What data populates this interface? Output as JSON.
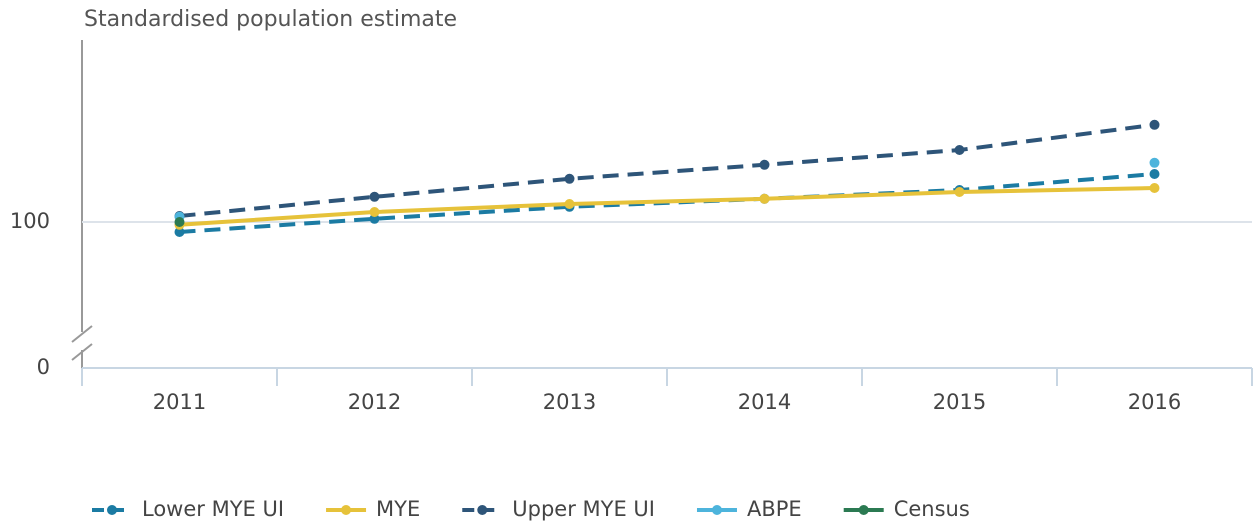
{
  "chart_data": {
    "type": "line",
    "y_label": "Standardised population estimate",
    "categories": [
      "2011",
      "2012",
      "2013",
      "2014",
      "2015",
      "2016"
    ],
    "series": [
      {
        "name": "Lower MYE UI",
        "color": "#1b7ba3",
        "dashed": true,
        "values": [
          99.75,
          100.08,
          100.38,
          100.58,
          100.8,
          101.2
        ]
      },
      {
        "name": "MYE",
        "color": "#e6c23a",
        "dashed": false,
        "values": [
          99.93,
          100.25,
          100.45,
          100.58,
          100.75,
          100.85
        ]
      },
      {
        "name": "Upper MYE UI",
        "color": "#2e5579",
        "dashed": true,
        "values": [
          100.15,
          100.63,
          101.08,
          101.43,
          101.8,
          102.43
        ]
      },
      {
        "name": "ABPE",
        "color": "#4db4dc",
        "dashed": false,
        "values": [
          100.13,
          null,
          null,
          null,
          null,
          101.48
        ]
      },
      {
        "name": "Census",
        "color": "#2b7a52",
        "dashed": false,
        "values": [
          100,
          null,
          null,
          null,
          null,
          null
        ]
      }
    ],
    "ylim": [
      97.3,
      104.55
    ],
    "yticks": [
      0,
      100
    ],
    "axis_break": true,
    "grid": true,
    "legend": "bottom"
  }
}
